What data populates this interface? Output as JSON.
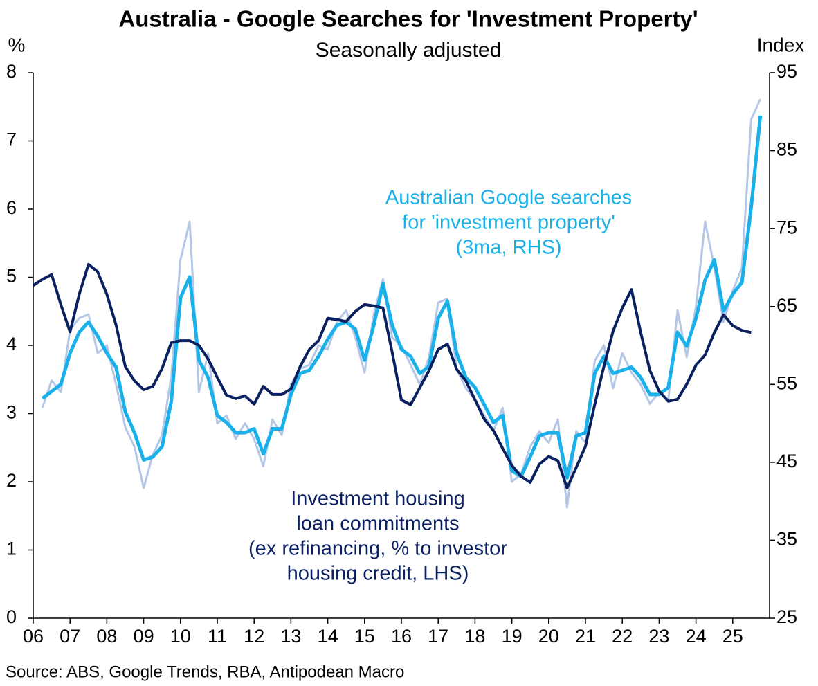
{
  "chart_data": {
    "type": "line",
    "title": "Australia - Google Searches for 'Investment Property'",
    "subtitle": "Seasonally adjusted",
    "y_label": "%",
    "y2_label": "Index",
    "source": "Source: ABS, Google Trends, RBA, Antipodean Macro",
    "xlim": [
      2006,
      2026
    ],
    "xticks": [
      {
        "value": 2006,
        "label": "06"
      },
      {
        "value": 2007,
        "label": "07"
      },
      {
        "value": 2008,
        "label": "08"
      },
      {
        "value": 2009,
        "label": "09"
      },
      {
        "value": 2010,
        "label": "10"
      },
      {
        "value": 2011,
        "label": "11"
      },
      {
        "value": 2012,
        "label": "12"
      },
      {
        "value": 2013,
        "label": "13"
      },
      {
        "value": 2014,
        "label": "14"
      },
      {
        "value": 2015,
        "label": "15"
      },
      {
        "value": 2016,
        "label": "16"
      },
      {
        "value": 2017,
        "label": "17"
      },
      {
        "value": 2018,
        "label": "18"
      },
      {
        "value": 2019,
        "label": "19"
      },
      {
        "value": 2020,
        "label": "20"
      },
      {
        "value": 2021,
        "label": "21"
      },
      {
        "value": 2022,
        "label": "22"
      },
      {
        "value": 2023,
        "label": "23"
      },
      {
        "value": 2024,
        "label": "24"
      },
      {
        "value": 2025,
        "label": "25"
      }
    ],
    "ylim": [
      0,
      8
    ],
    "yticks": [
      0,
      1,
      2,
      3,
      4,
      5,
      6,
      7,
      8
    ],
    "y2lim": [
      25,
      95
    ],
    "y2ticks": [
      25,
      35,
      45,
      55,
      65,
      75,
      85,
      95
    ],
    "grid": false,
    "series": [
      {
        "name": "Australian Google searches (raw)",
        "color": "#b4c7e7",
        "axis": "y2",
        "width": 3,
        "x": [
          2006.25,
          2006.5,
          2006.75,
          2007,
          2007.25,
          2007.5,
          2007.75,
          2008,
          2008.25,
          2008.5,
          2008.75,
          2009,
          2009.25,
          2009.5,
          2009.75,
          2010,
          2010.25,
          2010.5,
          2010.75,
          2011,
          2011.25,
          2011.5,
          2011.75,
          2012,
          2012.25,
          2012.5,
          2012.75,
          2013,
          2013.25,
          2013.5,
          2013.75,
          2014,
          2014.25,
          2014.5,
          2014.75,
          2015,
          2015.25,
          2015.5,
          2015.75,
          2016,
          2016.25,
          2016.5,
          2016.75,
          2017,
          2017.25,
          2017.5,
          2017.75,
          2018,
          2018.25,
          2018.5,
          2018.75,
          2019,
          2019.25,
          2019.5,
          2019.75,
          2020,
          2020.25,
          2020.5,
          2020.75,
          2021,
          2021.25,
          2021.5,
          2021.75,
          2022,
          2022.25,
          2022.5,
          2022.75,
          2023,
          2023.25,
          2023.5,
          2023.75,
          2024,
          2024.25,
          2024.5,
          2024.75,
          2025,
          2025.25,
          2025.5,
          2025.75
        ],
        "values": [
          52,
          55.5,
          54,
          62,
          63.5,
          64,
          59,
          60,
          55,
          49.5,
          47,
          41.7,
          46,
          48.5,
          56,
          71,
          75.9,
          54,
          59,
          50,
          51,
          48,
          50,
          48,
          44.5,
          50.5,
          48.5,
          55,
          57,
          57.5,
          60,
          59.5,
          63,
          64.5,
          61,
          56.5,
          64,
          68.5,
          61,
          60,
          57.5,
          55,
          58.5,
          65.5,
          66,
          57,
          54.5,
          53,
          51,
          49,
          52,
          42.5,
          43.5,
          47,
          49,
          47.5,
          50.5,
          39.2,
          49,
          47.5,
          58,
          60,
          54.5,
          59,
          56.5,
          55,
          52.5,
          54,
          53,
          64.5,
          58.5,
          65,
          75.9,
          70,
          63,
          67,
          70,
          89,
          91.6
        ]
      },
      {
        "name": "Australian Google searches for 'investment property' (3ma, RHS)",
        "color": "#1ab0ea",
        "axis": "y2",
        "width": 5,
        "x": [
          2006.25,
          2006.5,
          2006.75,
          2007,
          2007.25,
          2007.5,
          2007.75,
          2008,
          2008.25,
          2008.5,
          2008.75,
          2009,
          2009.25,
          2009.5,
          2009.75,
          2010,
          2010.25,
          2010.5,
          2010.75,
          2011,
          2011.25,
          2011.5,
          2011.75,
          2012,
          2012.25,
          2012.5,
          2012.75,
          2013,
          2013.25,
          2013.5,
          2013.75,
          2014,
          2014.25,
          2014.5,
          2014.75,
          2015,
          2015.25,
          2015.5,
          2015.75,
          2016,
          2016.25,
          2016.5,
          2016.75,
          2017,
          2017.25,
          2017.5,
          2017.75,
          2018,
          2018.25,
          2018.5,
          2018.75,
          2019,
          2019.25,
          2019.5,
          2019.75,
          2020,
          2020.25,
          2020.5,
          2020.75,
          2021,
          2021.25,
          2021.5,
          2021.75,
          2022,
          2022.25,
          2022.5,
          2022.75,
          2023,
          2023.25,
          2023.5,
          2023.75,
          2024,
          2024.25,
          2024.5,
          2024.75,
          2025,
          2025.25,
          2025.5,
          2025.75
        ],
        "values": [
          53.2,
          54.1,
          55,
          59,
          61.7,
          63,
          61.2,
          59,
          57.2,
          51.5,
          48.8,
          45.3,
          45.7,
          47,
          52.8,
          66.1,
          68.8,
          58.1,
          55.9,
          51,
          50.1,
          48.8,
          48.8,
          49.3,
          46.1,
          49.3,
          49.3,
          53.7,
          56.4,
          56.8,
          58.6,
          60.8,
          62.6,
          63,
          62.1,
          58.1,
          62.6,
          67.9,
          62.6,
          59.5,
          58.6,
          56.4,
          57.3,
          63.5,
          65.7,
          59,
          55.9,
          54.6,
          52.4,
          50.1,
          51,
          43.9,
          43.2,
          45.7,
          48.4,
          48.8,
          48.8,
          43,
          48.4,
          48.8,
          56.4,
          58.6,
          56.4,
          56.8,
          57.2,
          55.9,
          53.7,
          53.7,
          54.6,
          61.7,
          59.9,
          63.5,
          68.4,
          71,
          64.4,
          66.6,
          68.1,
          77.7,
          89.5
        ]
      },
      {
        "name": "Investment housing loan commitments (ex refinancing, % to investor housing credit, LHS)",
        "color": "#0b2060",
        "axis": "y",
        "width": 4,
        "x": [
          2006,
          2006.25,
          2006.5,
          2006.75,
          2007,
          2007.25,
          2007.5,
          2007.75,
          2008,
          2008.25,
          2008.5,
          2008.75,
          2009,
          2009.25,
          2009.5,
          2009.75,
          2010,
          2010.25,
          2010.5,
          2010.75,
          2011,
          2011.25,
          2011.5,
          2011.75,
          2012,
          2012.25,
          2012.5,
          2012.75,
          2013,
          2013.25,
          2013.5,
          2013.75,
          2014,
          2014.25,
          2014.5,
          2014.75,
          2015,
          2015.25,
          2015.5,
          2015.75,
          2016,
          2016.25,
          2016.5,
          2016.75,
          2017,
          2017.25,
          2017.5,
          2017.75,
          2018,
          2018.25,
          2018.5,
          2018.75,
          2019,
          2019.25,
          2019.5,
          2019.75,
          2020,
          2020.25,
          2020.5,
          2020.75,
          2021,
          2021.25,
          2021.5,
          2021.75,
          2022,
          2022.25,
          2022.5,
          2022.75,
          2023,
          2023.25,
          2023.5,
          2023.75,
          2024,
          2024.25,
          2024.5,
          2024.75,
          2025,
          2025.25,
          2025.5
        ],
        "values": [
          4.88,
          4.97,
          5.04,
          4.6,
          4.2,
          4.75,
          5.19,
          5.08,
          4.75,
          4.3,
          3.69,
          3.48,
          3.35,
          3.4,
          3.66,
          4.04,
          4.07,
          4.07,
          4.0,
          3.8,
          3.53,
          3.27,
          3.22,
          3.26,
          3.14,
          3.4,
          3.28,
          3.28,
          3.36,
          3.69,
          3.94,
          4.07,
          4.4,
          4.38,
          4.35,
          4.5,
          4.6,
          4.58,
          4.55,
          3.9,
          3.2,
          3.13,
          3.38,
          3.63,
          3.94,
          4.02,
          3.65,
          3.48,
          3.2,
          2.92,
          2.75,
          2.49,
          2.24,
          2.08,
          1.99,
          2.26,
          2.37,
          2.31,
          1.91,
          2.21,
          2.52,
          3.13,
          3.69,
          4.21,
          4.55,
          4.82,
          4.19,
          3.63,
          3.33,
          3.18,
          3.21,
          3.43,
          3.71,
          3.86,
          4.19,
          4.45,
          4.29,
          4.22,
          4.19
        ]
      }
    ],
    "annotations": [
      {
        "lines": [
          "Australian Google searches",
          "for 'investment property'",
          "(3ma, RHS)"
        ],
        "color": "#1ab0ea"
      },
      {
        "lines": [
          "Investment housing",
          "loan commitments",
          "(ex refinancing, % to investor",
          "housing credit, LHS)"
        ],
        "color": "#0b2060"
      }
    ]
  }
}
